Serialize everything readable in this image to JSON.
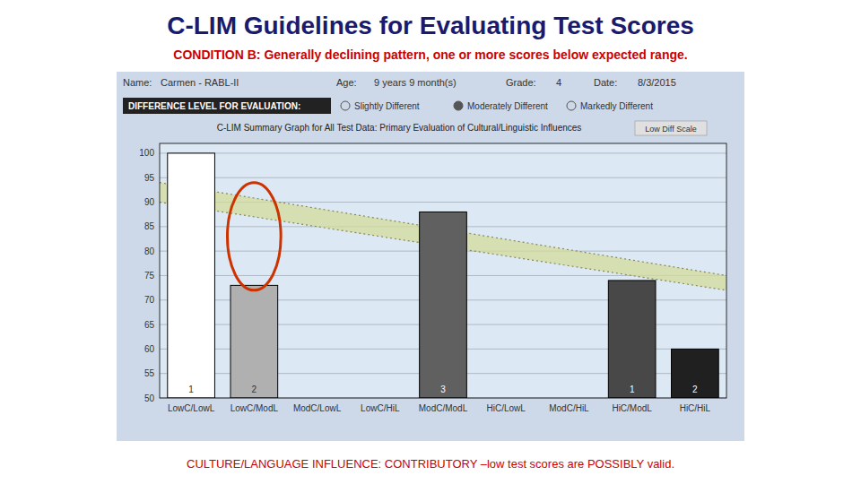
{
  "chart_data": {
    "type": "bar",
    "title": "C-LIM Guidelines for Evaluating Test Scores",
    "subtitle": "CONDITION B:  Generally declining pattern, one or more scores below expected range.",
    "bottom_note": "CULTURE/LANGUAGE INFLUENCE:  CONTRIBUTORY –low test scores are POSSIBLY valid.",
    "header": [
      {
        "label": "Name:",
        "value": "Carmen - RABL-II"
      },
      {
        "label": "Age:",
        "value": "9 years 9 month(s)"
      },
      {
        "label": "Grade:",
        "value": "4"
      },
      {
        "label": "Date:",
        "value": "8/3/2015"
      }
    ],
    "difference_level": {
      "label": "DIFFERENCE LEVEL FOR EVALUATION:",
      "options": [
        "Slightly Different",
        "Moderately Different",
        "Markedly Different"
      ],
      "selected": 1
    },
    "plot_title": "C-LIM Summary Graph for All Test Data: Primary Evaluation of Cultural/Linguistic Influences",
    "button_label": "Low Diff Scale",
    "categories": [
      "LowC/LowL",
      "LowC/ModL",
      "ModC/LowL",
      "LowC/HiL",
      "ModC/ModL",
      "HiC/LowL",
      "ModC/HiL",
      "HiC/ModL",
      "HiC/HiL"
    ],
    "values": [
      100,
      73,
      null,
      null,
      88,
      null,
      null,
      74,
      60
    ],
    "colors": [
      "#ffffff",
      "#b0b0b0",
      null,
      null,
      "#606060",
      null,
      null,
      "#484848",
      "#202020"
    ],
    "bar_numbers": [
      1,
      2,
      null,
      null,
      3,
      null,
      null,
      1,
      2
    ],
    "band": {
      "top": [
        94,
        75
      ],
      "bottom": [
        90,
        72
      ],
      "color": "#d4db9a"
    },
    "highlight": {
      "category": "LowC/ModL",
      "y": 83,
      "height": 22,
      "color": "#cc3300"
    },
    "ylim": [
      50,
      102
    ],
    "yticks": [
      50,
      55,
      60,
      65,
      70,
      75,
      80,
      85,
      90,
      95,
      100
    ],
    "grid": true
  }
}
